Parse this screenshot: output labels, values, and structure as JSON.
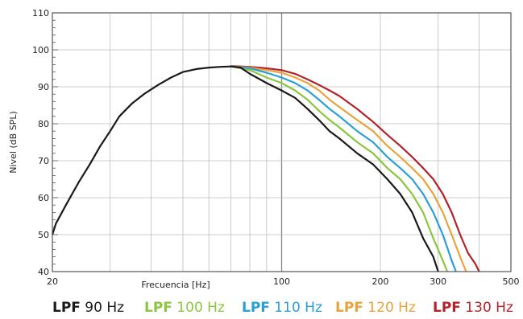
{
  "chart_data": {
    "type": "line",
    "title": "",
    "xlabel": "Frecuencia [Hz]",
    "ylabel": "Nivel (dB SPL)",
    "x_scale": "log",
    "xlim": [
      20,
      500
    ],
    "ylim": [
      40,
      110
    ],
    "x_ticks": [
      20,
      100,
      200,
      300,
      500
    ],
    "y_ticks": [
      40,
      50,
      60,
      70,
      80,
      90,
      100,
      110
    ],
    "grid": true,
    "legend_position": "bottom",
    "series": [
      {
        "name": "LPF 90 Hz",
        "prefix": "LPF",
        "suffix": "90 Hz",
        "color": "#1a1a1a",
        "points": [
          [
            20,
            50
          ],
          [
            20.5,
            53
          ],
          [
            22,
            58
          ],
          [
            24,
            64
          ],
          [
            26,
            69
          ],
          [
            28,
            74
          ],
          [
            30,
            78
          ],
          [
            32,
            82
          ],
          [
            35,
            85.5
          ],
          [
            38,
            88
          ],
          [
            42,
            90.5
          ],
          [
            46,
            92.5
          ],
          [
            50,
            94
          ],
          [
            55,
            94.8
          ],
          [
            60,
            95.2
          ],
          [
            65,
            95.4
          ],
          [
            70,
            95.5
          ],
          [
            75,
            95.2
          ],
          [
            80,
            93.5
          ],
          [
            90,
            91
          ],
          [
            100,
            89
          ],
          [
            110,
            87
          ],
          [
            120,
            84
          ],
          [
            130,
            81
          ],
          [
            140,
            78
          ],
          [
            150,
            76
          ],
          [
            170,
            72
          ],
          [
            190,
            69
          ],
          [
            210,
            65
          ],
          [
            230,
            61
          ],
          [
            250,
            56
          ],
          [
            270,
            49
          ],
          [
            290,
            44
          ],
          [
            300,
            40
          ]
        ]
      },
      {
        "name": "LPF 100 Hz",
        "prefix": "LPF",
        "suffix": "100 Hz",
        "color": "#8cc63f",
        "points": [
          [
            70,
            95.5
          ],
          [
            80,
            94.5
          ],
          [
            90,
            92.5
          ],
          [
            100,
            91
          ],
          [
            110,
            89
          ],
          [
            120,
            86.5
          ],
          [
            130,
            83.5
          ],
          [
            140,
            81
          ],
          [
            150,
            79
          ],
          [
            170,
            75
          ],
          [
            190,
            72
          ],
          [
            210,
            68
          ],
          [
            230,
            65
          ],
          [
            250,
            61
          ],
          [
            270,
            56
          ],
          [
            290,
            49
          ],
          [
            310,
            43
          ],
          [
            320,
            40
          ]
        ]
      },
      {
        "name": "LPF 110 Hz",
        "prefix": "LPF",
        "suffix": "110 Hz",
        "color": "#2a9fd6",
        "points": [
          [
            70,
            95.5
          ],
          [
            80,
            95
          ],
          [
            90,
            93.8
          ],
          [
            100,
            92.5
          ],
          [
            110,
            91
          ],
          [
            120,
            89
          ],
          [
            130,
            86.5
          ],
          [
            140,
            84
          ],
          [
            150,
            82
          ],
          [
            170,
            78
          ],
          [
            190,
            75
          ],
          [
            210,
            71
          ],
          [
            230,
            68
          ],
          [
            250,
            65
          ],
          [
            270,
            61
          ],
          [
            290,
            56
          ],
          [
            310,
            50
          ],
          [
            330,
            43
          ],
          [
            340,
            40
          ]
        ]
      },
      {
        "name": "LPF 120 Hz",
        "prefix": "LPF",
        "suffix": "120 Hz",
        "color": "#e8a33d",
        "points": [
          [
            70,
            95.5
          ],
          [
            80,
            95.2
          ],
          [
            90,
            94.5
          ],
          [
            100,
            93.8
          ],
          [
            110,
            92.5
          ],
          [
            120,
            91
          ],
          [
            130,
            89
          ],
          [
            140,
            86.5
          ],
          [
            150,
            84.5
          ],
          [
            170,
            81
          ],
          [
            190,
            78
          ],
          [
            210,
            74
          ],
          [
            230,
            71
          ],
          [
            250,
            68
          ],
          [
            270,
            65
          ],
          [
            290,
            61
          ],
          [
            310,
            56
          ],
          [
            330,
            50
          ],
          [
            350,
            44
          ],
          [
            365,
            40
          ]
        ]
      },
      {
        "name": "LPF 130 Hz",
        "prefix": "LPF",
        "suffix": "130 Hz",
        "color": "#b3222a",
        "points": [
          [
            70,
            95.6
          ],
          [
            80,
            95.4
          ],
          [
            90,
            95
          ],
          [
            100,
            94.5
          ],
          [
            110,
            93.5
          ],
          [
            120,
            92
          ],
          [
            130,
            90.5
          ],
          [
            140,
            89
          ],
          [
            150,
            87.5
          ],
          [
            170,
            84
          ],
          [
            190,
            80.5
          ],
          [
            210,
            77
          ],
          [
            230,
            74
          ],
          [
            250,
            71
          ],
          [
            270,
            68
          ],
          [
            290,
            65
          ],
          [
            310,
            61
          ],
          [
            330,
            56
          ],
          [
            350,
            50
          ],
          [
            370,
            45
          ],
          [
            390,
            42
          ],
          [
            400,
            40
          ]
        ]
      }
    ]
  }
}
